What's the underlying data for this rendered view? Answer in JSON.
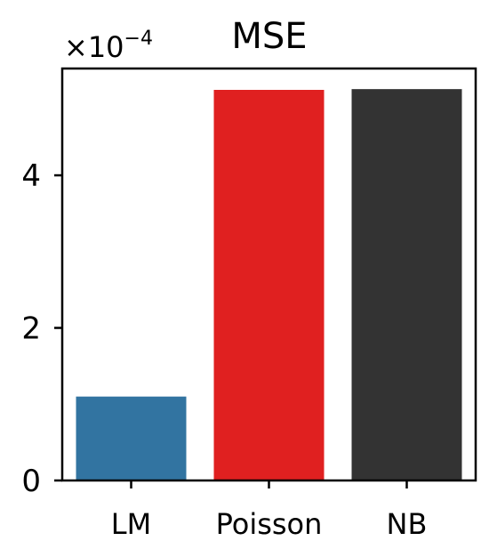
{
  "chart_data": {
    "type": "bar",
    "title": "MSE",
    "categories": [
      "LM",
      "Poisson",
      "NB"
    ],
    "values": [
      0.00011,
      0.000512,
      0.000513
    ],
    "colors": [
      "#3274a1",
      "#e02020",
      "#333333"
    ],
    "ylim": [
      0,
      0.00054
    ],
    "yticks": [
      0,
      0.0002,
      0.0004
    ],
    "ytick_labels": [
      "0",
      "2",
      "4"
    ],
    "y_offset_prefix": "×10",
    "y_offset_exponent": "−4",
    "xlabel": "",
    "ylabel": "",
    "grid": false
  }
}
